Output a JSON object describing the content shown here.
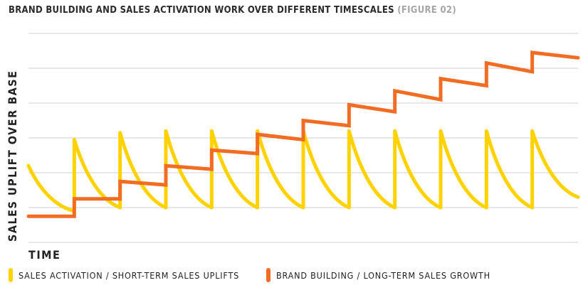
{
  "header": {
    "title": "BRAND BUILDING AND SALES ACTIVATION WORK OVER DIFFERENT TIMESCALES",
    "figure_label": "(FIGURE 02)"
  },
  "chart_data": {
    "type": "line",
    "xlabel": "TIME",
    "ylabel": "SALES UPLIFT OVER BASE",
    "grid": true,
    "legend_position": "bottom",
    "x_range": [
      0,
      12
    ],
    "y_range": [
      0,
      6
    ],
    "series": [
      {
        "name": "SALES ACTIVATION / SHORT-TERM SALES UPLIFTS",
        "color": "#FFD200",
        "points": [
          [
            0.0,
            2.2
          ],
          [
            1.0,
            0.9
          ],
          [
            1.0,
            2.95
          ],
          [
            2.0,
            1.0
          ],
          [
            2.0,
            3.15
          ],
          [
            3.0,
            1.0
          ],
          [
            3.0,
            3.2
          ],
          [
            4.0,
            1.0
          ],
          [
            4.0,
            3.2
          ],
          [
            5.0,
            1.0
          ],
          [
            5.0,
            3.2
          ],
          [
            6.0,
            1.0
          ],
          [
            6.0,
            3.2
          ],
          [
            7.0,
            1.0
          ],
          [
            7.0,
            3.2
          ],
          [
            8.0,
            1.0
          ],
          [
            8.0,
            3.2
          ],
          [
            9.0,
            1.0
          ],
          [
            9.0,
            3.2
          ],
          [
            10.0,
            1.0
          ],
          [
            10.0,
            3.2
          ],
          [
            11.0,
            1.0
          ],
          [
            11.0,
            3.2
          ],
          [
            12.0,
            1.3
          ]
        ]
      },
      {
        "name": "BRAND BUILDING / LONG-TERM SALES GROWTH",
        "color": "#F26C23",
        "points": [
          [
            0.0,
            0.75
          ],
          [
            1.0,
            0.75
          ],
          [
            1.0,
            1.25
          ],
          [
            2.0,
            1.25
          ],
          [
            2.0,
            1.75
          ],
          [
            3.0,
            1.65
          ],
          [
            3.0,
            2.2
          ],
          [
            4.0,
            2.1
          ],
          [
            4.0,
            2.65
          ],
          [
            5.0,
            2.55
          ],
          [
            5.0,
            3.1
          ],
          [
            6.0,
            2.95
          ],
          [
            6.0,
            3.5
          ],
          [
            7.0,
            3.35
          ],
          [
            7.0,
            3.95
          ],
          [
            8.0,
            3.75
          ],
          [
            8.0,
            4.35
          ],
          [
            9.0,
            4.1
          ],
          [
            9.0,
            4.7
          ],
          [
            10.0,
            4.5
          ],
          [
            10.0,
            5.15
          ],
          [
            11.0,
            4.9
          ],
          [
            11.0,
            5.45
          ],
          [
            12.0,
            5.3
          ]
        ]
      }
    ]
  }
}
